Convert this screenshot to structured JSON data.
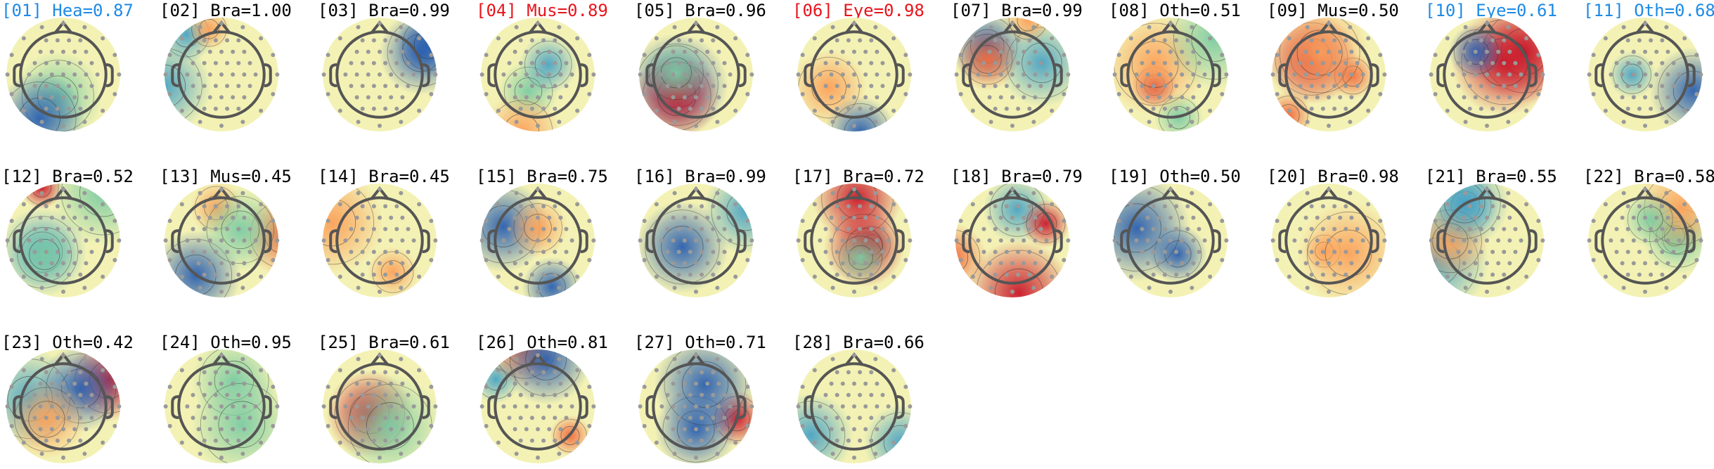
{
  "components": [
    {
      "label": "[01] Hea=0.87",
      "color": "#1e8ae6"
    },
    {
      "label": "[02] Bra=1.00",
      "color": "#000000"
    },
    {
      "label": "[03] Bra=0.99",
      "color": "#000000"
    },
    {
      "label": "[04] Mus=0.89",
      "color": "#e8141b"
    },
    {
      "label": "[05] Bra=0.96",
      "color": "#000000"
    },
    {
      "label": "[06] Eye=0.98",
      "color": "#e8141b"
    },
    {
      "label": "[07] Bra=0.99",
      "color": "#000000"
    },
    {
      "label": "[08] Oth=0.51",
      "color": "#000000"
    },
    {
      "label": "[09] Mus=0.50",
      "color": "#000000"
    },
    {
      "label": "[10] Eye=0.61",
      "color": "#1e8ae6"
    },
    {
      "label": "[11] Oth=0.68",
      "color": "#1e8ae6"
    },
    {
      "label": "[12] Bra=0.52",
      "color": "#000000"
    },
    {
      "label": "[13] Mus=0.45",
      "color": "#000000"
    },
    {
      "label": "[14] Bra=0.45",
      "color": "#000000"
    },
    {
      "label": "[15] Bra=0.75",
      "color": "#000000"
    },
    {
      "label": "[16] Bra=0.99",
      "color": "#000000"
    },
    {
      "label": "[17] Bra=0.72",
      "color": "#000000"
    },
    {
      "label": "[18] Bra=0.79",
      "color": "#000000"
    },
    {
      "label": "[19] Oth=0.50",
      "color": "#000000"
    },
    {
      "label": "[20] Bra=0.98",
      "color": "#000000"
    },
    {
      "label": "[21] Bra=0.55",
      "color": "#000000"
    },
    {
      "label": "[22] Bra=0.58",
      "color": "#000000"
    },
    {
      "label": "[23] Oth=0.42",
      "color": "#000000"
    },
    {
      "label": "[24] Oth=0.95",
      "color": "#000000"
    },
    {
      "label": "[25] Bra=0.61",
      "color": "#000000"
    },
    {
      "label": "[26] Oth=0.81",
      "color": "#000000"
    },
    {
      "label": "[27] Oth=0.71",
      "color": "#000000"
    },
    {
      "label": "[28] Bra=0.66",
      "color": "#000000"
    }
  ]
}
